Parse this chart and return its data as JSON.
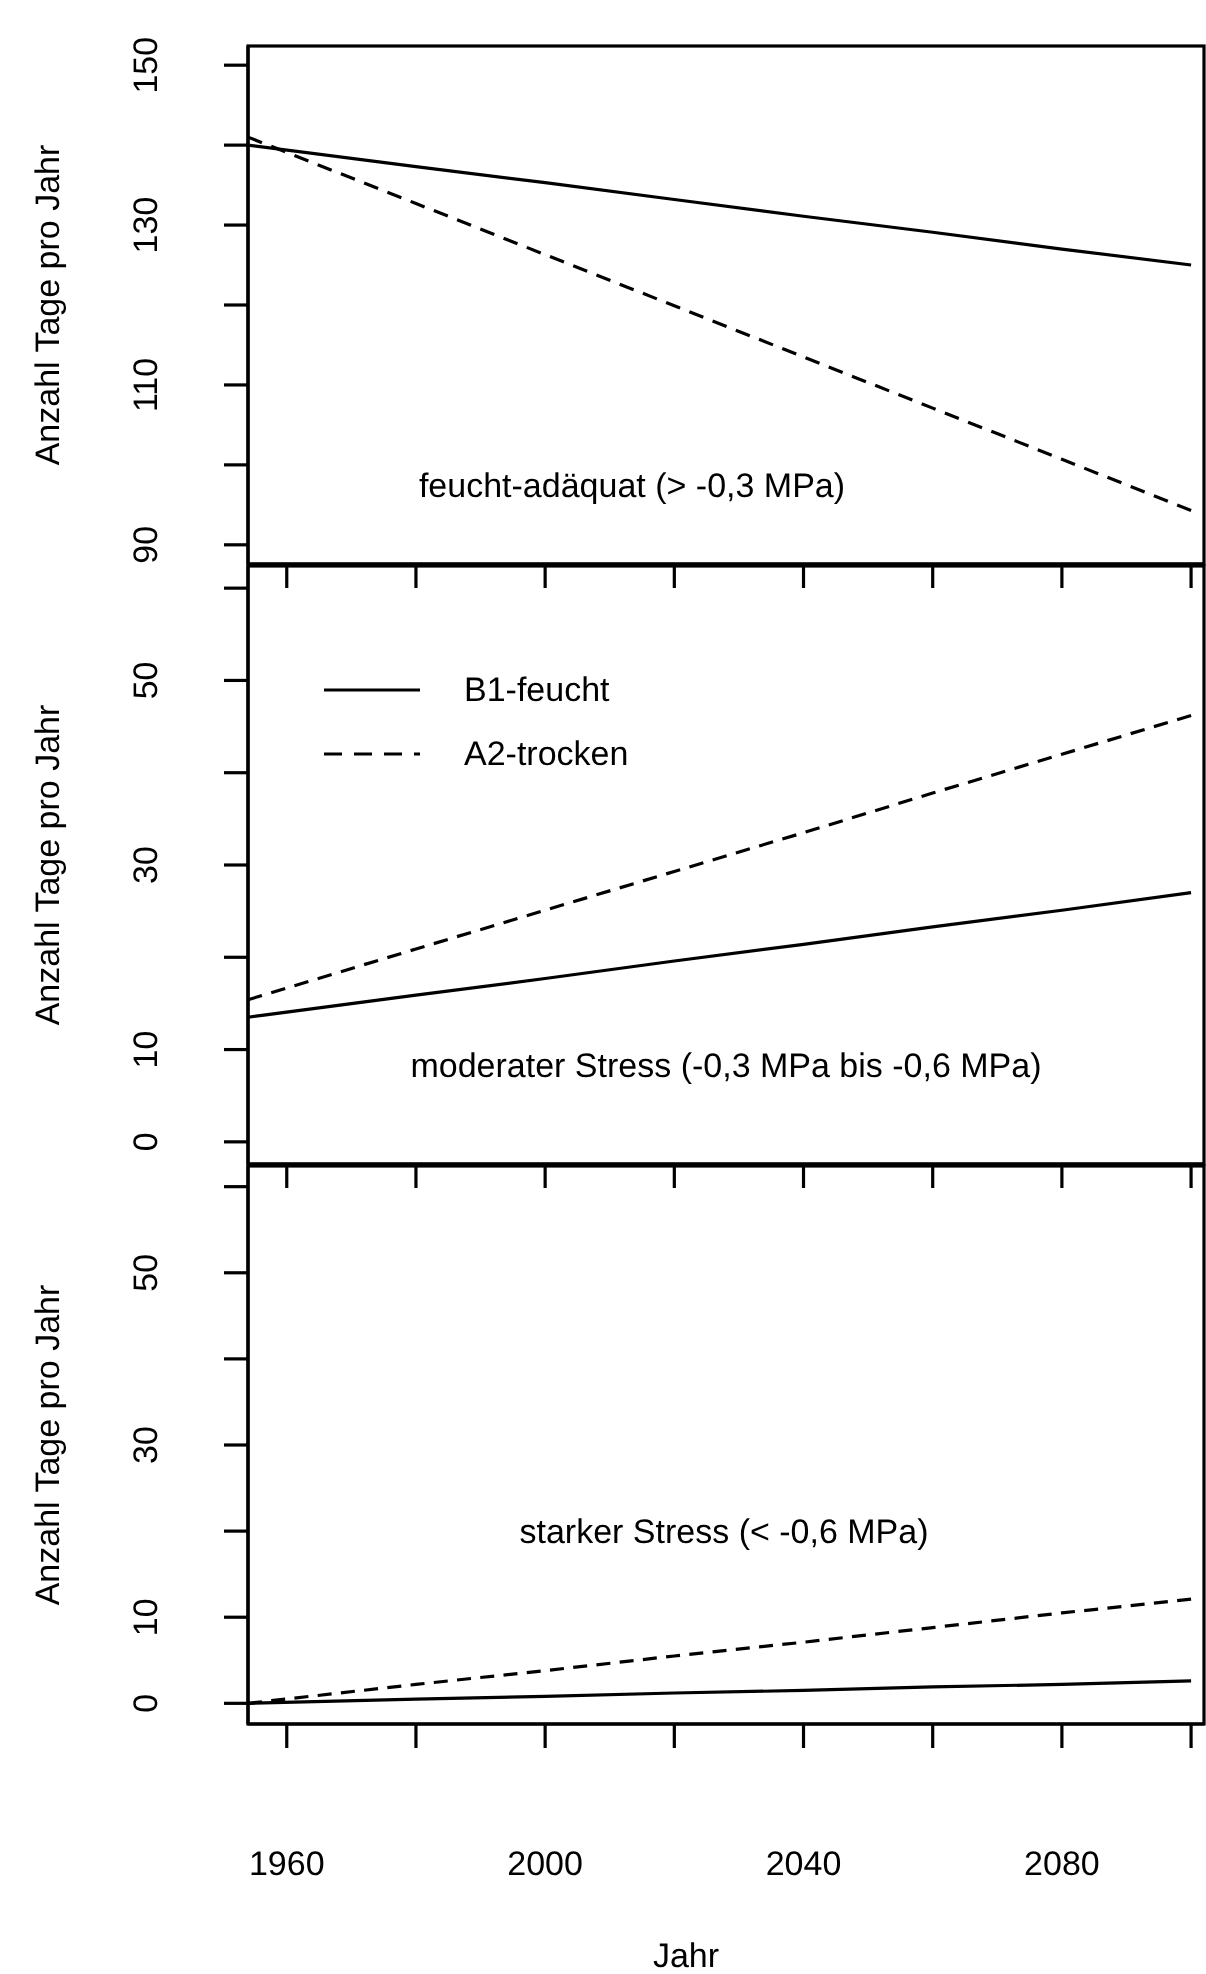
{
  "chart_data": [
    {
      "type": "line",
      "ylabel": "Anzahl Tage pro Jahr",
      "annotations": [
        "feucht-adäquat (> -0,3 MPa)"
      ],
      "tick_labels": "y",
      "x": [
        1954,
        1980,
        2000,
        2020,
        2040,
        2060,
        2080,
        2100
      ],
      "xlim": [
        1954,
        2102
      ],
      "xticks": [
        1960,
        {
          "value": 1980,
          "label": null
        },
        2000,
        {
          "value": 2020,
          "label": null
        },
        2040,
        {
          "value": 2060,
          "label": null
        },
        2080,
        {
          "value": 2100,
          "label": null
        }
      ],
      "ylim": [
        87.6,
        152.4
      ],
      "yticks": [
        90,
        {
          "value": 100,
          "label": null
        },
        110,
        {
          "value": 120,
          "label": null
        },
        130,
        {
          "value": 140,
          "label": null
        },
        150
      ],
      "series": [
        {
          "color": "#000000",
          "line_style": "solid",
          "values": [
            140.0,
            137.3,
            135.3,
            133.2,
            131.1,
            129.1,
            127.0,
            125.0
          ]
        },
        {
          "color": "#000000",
          "line_style": "dashed",
          "values": [
            141.0,
            132.7,
            126.3,
            119.9,
            113.5,
            107.1,
            100.7,
            94.3
          ]
        }
      ]
    },
    {
      "type": "line",
      "ylabel": "Anzahl Tage pro Jahr",
      "annotations": [
        "moderater Stress (-0,3 MPa bis -0,6 MPa)"
      ],
      "tick_labels": "y",
      "legend": "top left",
      "x": [
        1954,
        1980,
        2000,
        2020,
        2040,
        2060,
        2080,
        2100
      ],
      "xlim": [
        1954,
        2102
      ],
      "xticks": [
        1960,
        {
          "value": 1980,
          "label": null
        },
        2000,
        {
          "value": 2020,
          "label": null
        },
        2040,
        {
          "value": 2060,
          "label": null
        },
        2080,
        {
          "value": 2100,
          "label": null
        }
      ],
      "ylim": [
        -2.4,
        62.4
      ],
      "yticks": [
        0,
        10,
        {
          "value": 20,
          "label": null
        },
        30,
        {
          "value": 40,
          "label": null
        },
        50,
        {
          "value": 60,
          "label": null
        }
      ],
      "series": [
        {
          "name": "B1-feucht",
          "color": "#000000",
          "line_style": "solid",
          "values": [
            13.5,
            15.9,
            17.7,
            19.6,
            21.4,
            23.3,
            25.1,
            27.0
          ]
        },
        {
          "name": "A2-trocken",
          "color": "#000000",
          "line_style": "dashed",
          "values": [
            15.4,
            20.9,
            25.1,
            29.3,
            33.5,
            37.8,
            42.0,
            46.2
          ]
        }
      ]
    },
    {
      "type": "line",
      "ylabel": "Anzahl Tage pro Jahr",
      "xlabel": "Jahr",
      "annotations": [
        "starker Stress (< -0,6 MPa)"
      ],
      "x": [
        1954,
        1980,
        2000,
        2020,
        2040,
        2060,
        2080,
        2100
      ],
      "xlim": [
        1954,
        2102
      ],
      "xticks": [
        1960,
        {
          "value": 1980,
          "label": null
        },
        2000,
        {
          "value": 2020,
          "label": null
        },
        2040,
        {
          "value": 2060,
          "label": null
        },
        2080,
        {
          "value": 2100,
          "label": null
        }
      ],
      "ylim": [
        -2.4,
        62.4
      ],
      "yticks": [
        0,
        10,
        {
          "value": 20,
          "label": null
        },
        30,
        {
          "value": 40,
          "label": null
        },
        50,
        {
          "value": 60,
          "label": null
        }
      ],
      "series": [
        {
          "color": "#000000",
          "line_style": "solid",
          "values": [
            0.0,
            0.5,
            0.8,
            1.2,
            1.5,
            1.9,
            2.2,
            2.6
          ]
        },
        {
          "color": "#000000",
          "line_style": "dashed",
          "values": [
            0.0,
            2.2,
            3.8,
            5.5,
            7.1,
            8.8,
            10.5,
            12.1
          ]
        }
      ]
    }
  ]
}
